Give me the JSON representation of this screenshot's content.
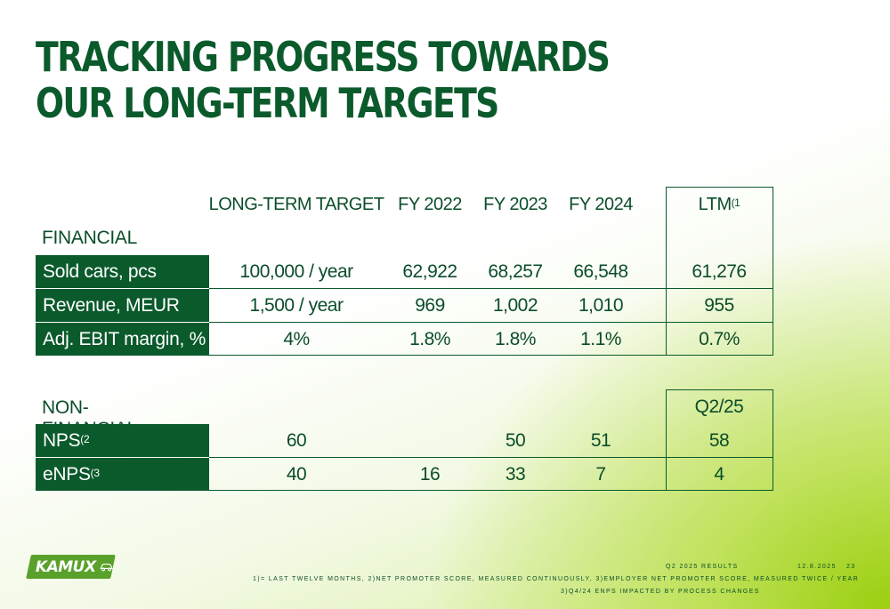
{
  "title": "TRACKING PROGRESS TOWARDS OUR LONG-TERM TARGETS",
  "columns": {
    "target": "LONG-TERM TARGET",
    "fy2022": "FY 2022",
    "fy2023": "FY 2023",
    "fy2024": "FY 2024",
    "ltm": "LTM",
    "ltm_note": "(1"
  },
  "financial": {
    "section_label": "FINANCIAL",
    "rows": [
      {
        "label": "Sold cars, pcs",
        "target": "100,000 / year",
        "fy2022": "62,922",
        "fy2023": "68,257",
        "fy2024": "66,548",
        "ltm": "61,276"
      },
      {
        "label": "Revenue, MEUR",
        "target": "1,500 / year",
        "fy2022": "969",
        "fy2023": "1,002",
        "fy2024": "1,010",
        "ltm": "955"
      },
      {
        "label": "Adj. EBIT margin, %",
        "target": "4%",
        "fy2022": "1.8%",
        "fy2023": "1.8%",
        "fy2024": "1.1%",
        "ltm": "0.7%"
      }
    ]
  },
  "non_financial": {
    "section_label": "NON-FINANCIAL",
    "period_label": "Q2/25",
    "rows": [
      {
        "label": "NPS",
        "note": "(2",
        "target": "60",
        "fy2022": "",
        "fy2023": "50",
        "fy2024": "51",
        "q2": "58"
      },
      {
        "label": "eNPS",
        "note": "(3",
        "target": "40",
        "fy2022": "16",
        "fy2023": "33",
        "fy2024": "7",
        "q2": "4"
      }
    ]
  },
  "footer": {
    "report": "Q2 2025 RESULTS",
    "date": "12.8.2025",
    "page": "23",
    "notes": "1)= LAST TWELVE MONTHS, 2)NET PROMOTER SCORE, MEASURED CONTINUOUSLY, 3)EMPLOYER NET PROMOTER SCORE, MEASURED TWICE / YEAR",
    "notes2": "3)Q4/24 eNPS IMPACTED BY PROCESS CHANGES"
  },
  "logo": {
    "text": "KAMUX",
    "icon": "car-icon"
  },
  "colors": {
    "brand_green": "#0b5a2c",
    "accent_lime": "#9ccf10",
    "logo_green": "#5aa12b"
  }
}
